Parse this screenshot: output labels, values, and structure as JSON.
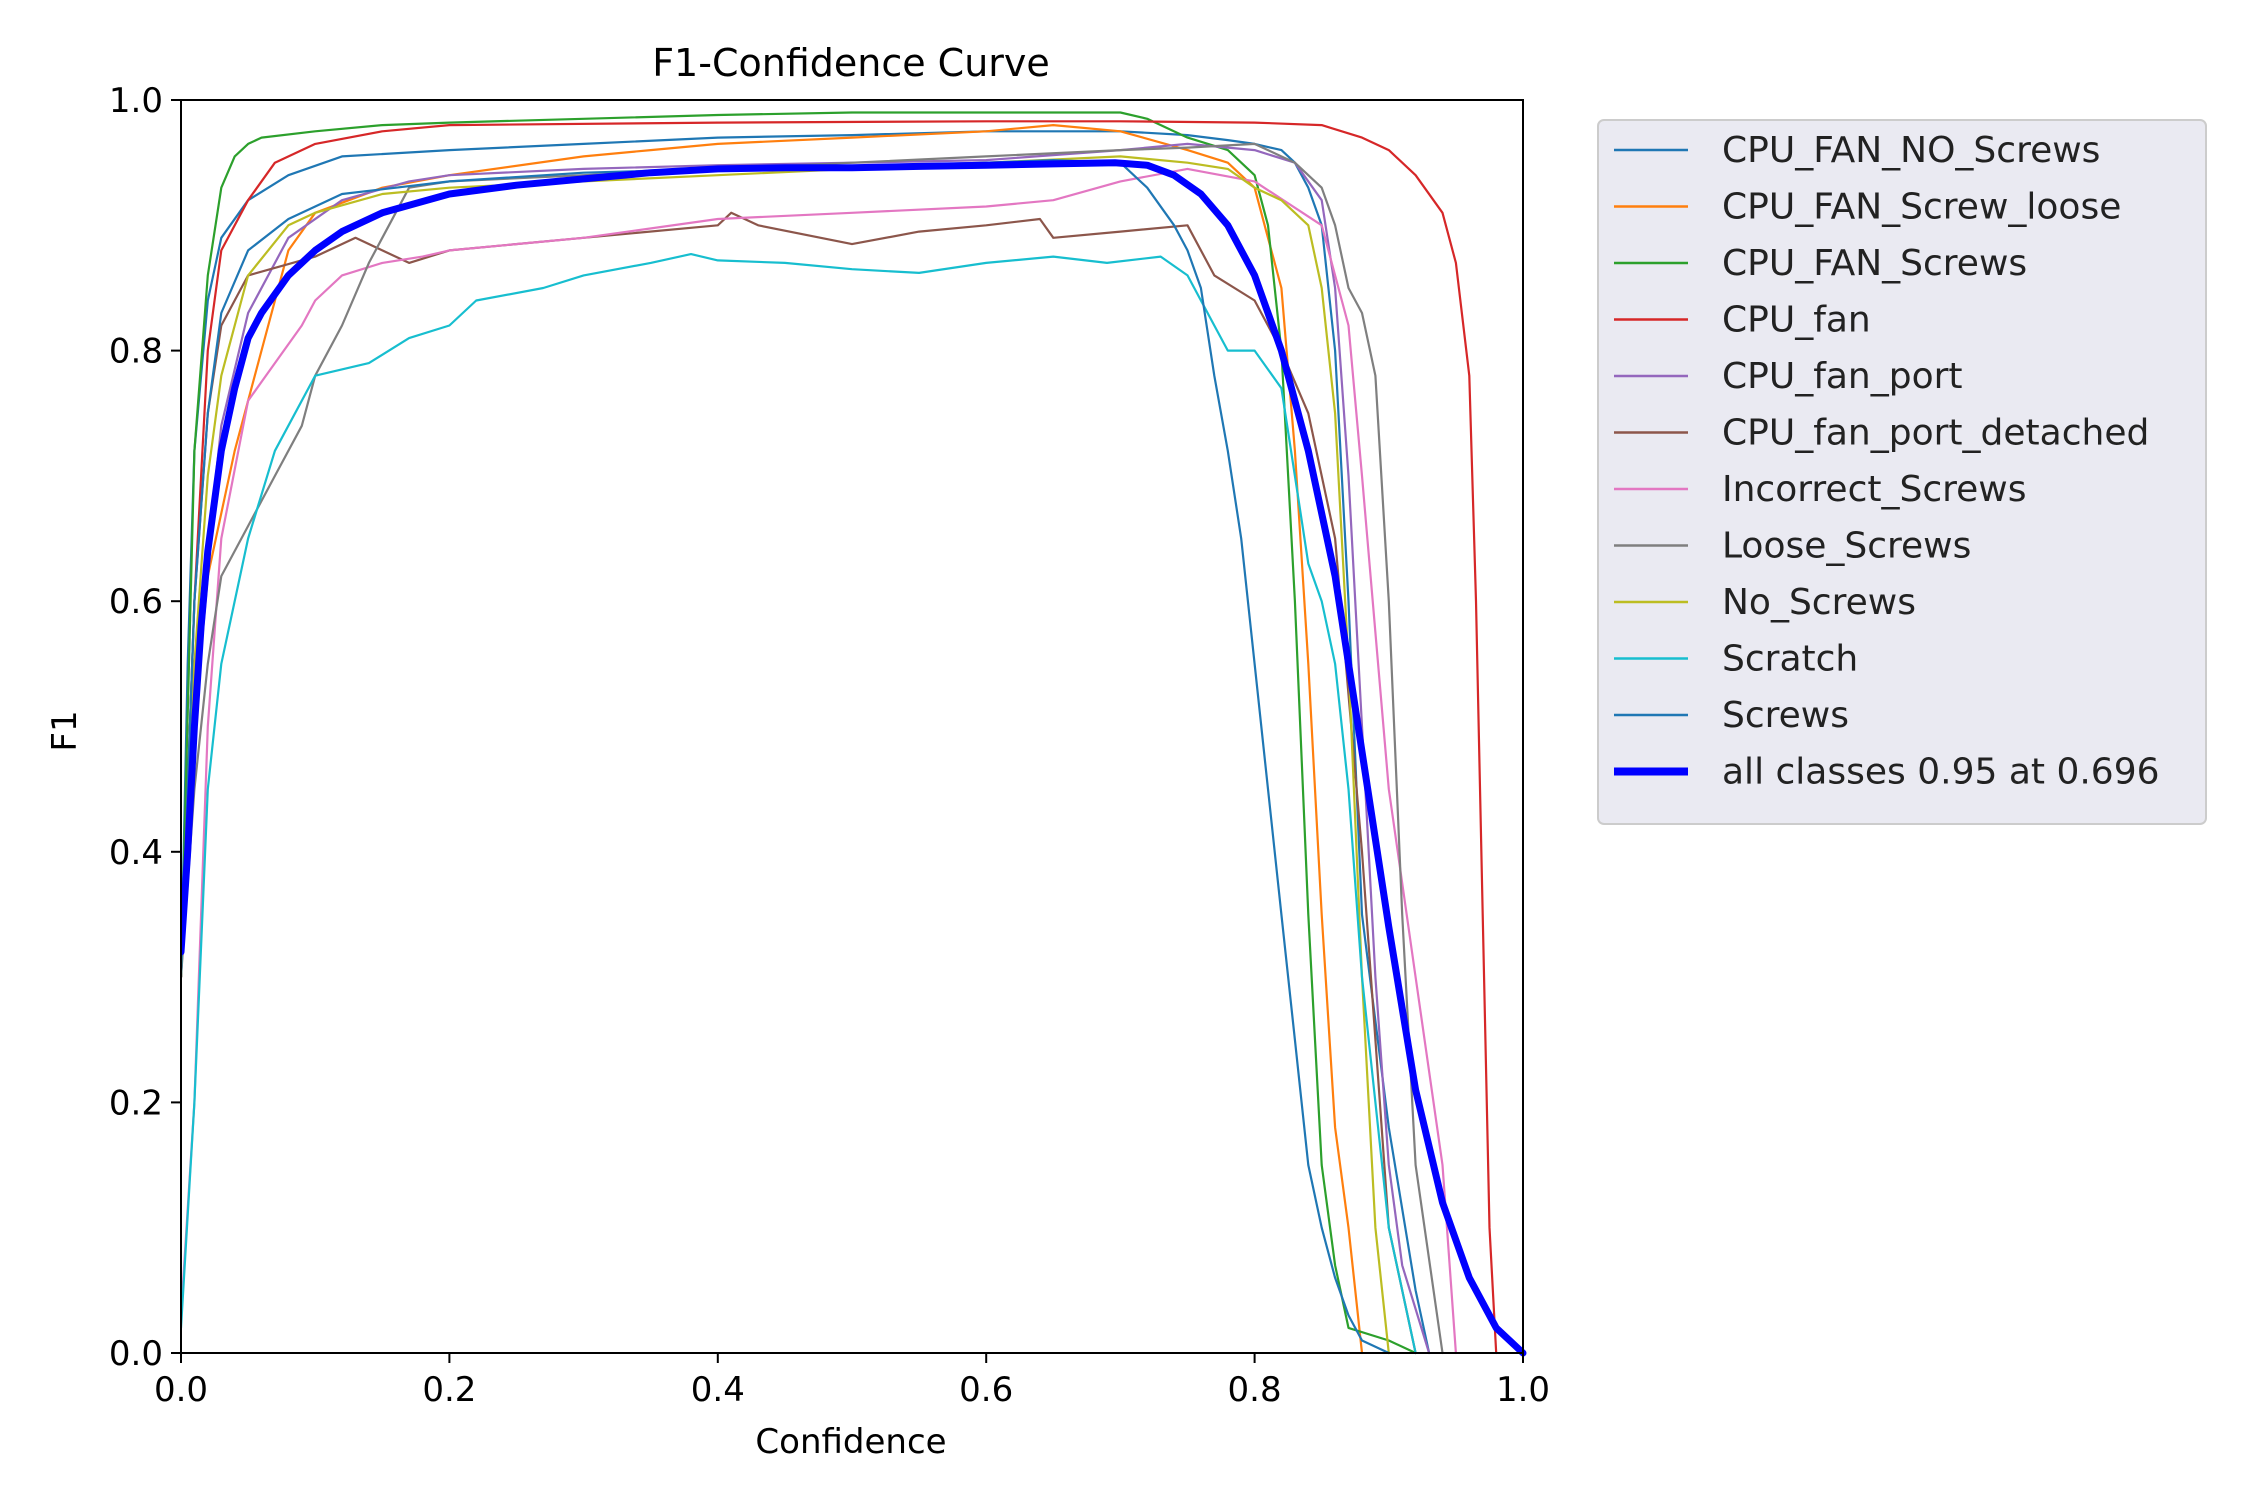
{
  "chart_data": {
    "type": "line",
    "title": "F1-Confidence Curve",
    "xlabel": "Confidence",
    "ylabel": "F1",
    "xlim": [
      0,
      1
    ],
    "ylim": [
      0,
      1
    ],
    "xticks": [
      "0.0",
      "0.2",
      "0.4",
      "0.6",
      "0.8",
      "1.0"
    ],
    "yticks": [
      "0.0",
      "0.2",
      "0.4",
      "0.6",
      "0.8",
      "1.0"
    ],
    "legend_position": "outside-right",
    "grid": false,
    "series": [
      {
        "name": "CPU_FAN_NO_Screws",
        "color": "#1f77b4",
        "width": 1,
        "x": [
          0.0,
          0.005,
          0.01,
          0.02,
          0.03,
          0.05,
          0.08,
          0.12,
          0.2,
          0.3,
          0.4,
          0.5,
          0.6,
          0.7,
          0.75,
          0.78,
          0.8,
          0.82,
          0.83,
          0.84,
          0.85,
          0.86,
          0.87,
          0.88,
          0.9,
          0.92,
          0.93
        ],
        "y": [
          0.3,
          0.55,
          0.72,
          0.84,
          0.89,
          0.92,
          0.94,
          0.955,
          0.96,
          0.965,
          0.97,
          0.972,
          0.975,
          0.975,
          0.972,
          0.968,
          0.965,
          0.96,
          0.95,
          0.93,
          0.9,
          0.8,
          0.6,
          0.35,
          0.18,
          0.05,
          0.0
        ]
      },
      {
        "name": "CPU_FAN_Screw_loose",
        "color": "#ff7f0e",
        "width": 1,
        "x": [
          0.0,
          0.01,
          0.02,
          0.04,
          0.06,
          0.08,
          0.1,
          0.15,
          0.2,
          0.3,
          0.35,
          0.4,
          0.5,
          0.6,
          0.65,
          0.7,
          0.75,
          0.78,
          0.8,
          0.82,
          0.83,
          0.84,
          0.85,
          0.86,
          0.87,
          0.88
        ],
        "y": [
          0.3,
          0.5,
          0.62,
          0.72,
          0.8,
          0.88,
          0.91,
          0.93,
          0.94,
          0.955,
          0.96,
          0.965,
          0.97,
          0.975,
          0.98,
          0.975,
          0.96,
          0.95,
          0.93,
          0.85,
          0.72,
          0.55,
          0.35,
          0.18,
          0.1,
          0.0
        ]
      },
      {
        "name": "CPU_FAN_Screws",
        "color": "#2ca02c",
        "width": 1,
        "x": [
          0.0,
          0.01,
          0.02,
          0.03,
          0.04,
          0.05,
          0.06,
          0.1,
          0.15,
          0.2,
          0.3,
          0.4,
          0.5,
          0.6,
          0.7,
          0.72,
          0.75,
          0.78,
          0.8,
          0.81,
          0.82,
          0.83,
          0.84,
          0.85,
          0.86,
          0.87,
          0.9,
          0.92
        ],
        "y": [
          0.3,
          0.72,
          0.86,
          0.93,
          0.955,
          0.965,
          0.97,
          0.975,
          0.98,
          0.982,
          0.985,
          0.988,
          0.99,
          0.99,
          0.99,
          0.985,
          0.97,
          0.96,
          0.94,
          0.9,
          0.8,
          0.6,
          0.35,
          0.15,
          0.07,
          0.02,
          0.01,
          0.0
        ]
      },
      {
        "name": "CPU_fan",
        "color": "#d62728",
        "width": 1,
        "x": [
          0.0,
          0.01,
          0.02,
          0.03,
          0.05,
          0.07,
          0.1,
          0.15,
          0.2,
          0.4,
          0.6,
          0.7,
          0.8,
          0.85,
          0.88,
          0.9,
          0.92,
          0.94,
          0.95,
          0.96,
          0.965,
          0.97,
          0.975,
          0.98
        ],
        "y": [
          0.3,
          0.6,
          0.8,
          0.88,
          0.92,
          0.95,
          0.965,
          0.975,
          0.98,
          0.982,
          0.983,
          0.983,
          0.982,
          0.98,
          0.97,
          0.96,
          0.94,
          0.91,
          0.87,
          0.78,
          0.6,
          0.35,
          0.1,
          0.0
        ]
      },
      {
        "name": "CPU_fan_port",
        "color": "#9467bd",
        "width": 1,
        "x": [
          0.0,
          0.01,
          0.02,
          0.03,
          0.05,
          0.08,
          0.12,
          0.17,
          0.2,
          0.3,
          0.4,
          0.5,
          0.6,
          0.7,
          0.75,
          0.8,
          0.83,
          0.85,
          0.86,
          0.87,
          0.88,
          0.89,
          0.9,
          0.91,
          0.93
        ],
        "y": [
          0.3,
          0.5,
          0.64,
          0.74,
          0.83,
          0.89,
          0.92,
          0.935,
          0.94,
          0.945,
          0.948,
          0.95,
          0.952,
          0.96,
          0.965,
          0.96,
          0.95,
          0.92,
          0.85,
          0.7,
          0.5,
          0.3,
          0.15,
          0.07,
          0.0
        ]
      },
      {
        "name": "CPU_fan_port_detached",
        "color": "#8c564b",
        "width": 1,
        "x": [
          0.0,
          0.01,
          0.02,
          0.03,
          0.05,
          0.1,
          0.13,
          0.15,
          0.17,
          0.2,
          0.3,
          0.4,
          0.41,
          0.43,
          0.5,
          0.55,
          0.6,
          0.64,
          0.65,
          0.7,
          0.75,
          0.77,
          0.8,
          0.82,
          0.84,
          0.86,
          0.88,
          0.9,
          0.92
        ],
        "y": [
          0.3,
          0.6,
          0.75,
          0.82,
          0.86,
          0.875,
          0.89,
          0.88,
          0.87,
          0.88,
          0.89,
          0.9,
          0.91,
          0.9,
          0.885,
          0.895,
          0.9,
          0.905,
          0.89,
          0.895,
          0.9,
          0.86,
          0.84,
          0.8,
          0.75,
          0.65,
          0.4,
          0.1,
          0.0
        ]
      },
      {
        "name": "Incorrect_Screws",
        "color": "#e377c2",
        "width": 1,
        "x": [
          0.0,
          0.01,
          0.02,
          0.03,
          0.05,
          0.07,
          0.09,
          0.1,
          0.12,
          0.15,
          0.18,
          0.2,
          0.3,
          0.4,
          0.5,
          0.6,
          0.65,
          0.7,
          0.75,
          0.8,
          0.85,
          0.87,
          0.88,
          0.9,
          0.92,
          0.94,
          0.95
        ],
        "y": [
          0.03,
          0.2,
          0.5,
          0.65,
          0.76,
          0.79,
          0.82,
          0.84,
          0.86,
          0.87,
          0.875,
          0.88,
          0.89,
          0.905,
          0.91,
          0.915,
          0.92,
          0.935,
          0.945,
          0.935,
          0.9,
          0.82,
          0.7,
          0.45,
          0.3,
          0.15,
          0.0
        ]
      },
      {
        "name": "Loose_Screws",
        "color": "#7f7f7f",
        "width": 1,
        "x": [
          0.0,
          0.01,
          0.02,
          0.03,
          0.05,
          0.07,
          0.09,
          0.1,
          0.12,
          0.14,
          0.17,
          0.2,
          0.3,
          0.4,
          0.5,
          0.6,
          0.7,
          0.75,
          0.8,
          0.83,
          0.85,
          0.86,
          0.87,
          0.88,
          0.89,
          0.9,
          0.91,
          0.92,
          0.94
        ],
        "y": [
          0.3,
          0.45,
          0.55,
          0.62,
          0.66,
          0.7,
          0.74,
          0.78,
          0.82,
          0.87,
          0.93,
          0.935,
          0.94,
          0.945,
          0.95,
          0.955,
          0.96,
          0.962,
          0.965,
          0.95,
          0.93,
          0.9,
          0.85,
          0.83,
          0.78,
          0.6,
          0.35,
          0.15,
          0.0
        ]
      },
      {
        "name": "No_Screws",
        "color": "#bcbd22",
        "width": 1,
        "x": [
          0.0,
          0.01,
          0.02,
          0.03,
          0.05,
          0.08,
          0.1,
          0.15,
          0.2,
          0.3,
          0.4,
          0.5,
          0.6,
          0.7,
          0.75,
          0.78,
          0.8,
          0.82,
          0.84,
          0.85,
          0.86,
          0.87,
          0.88,
          0.89,
          0.9
        ],
        "y": [
          0.3,
          0.55,
          0.7,
          0.78,
          0.86,
          0.9,
          0.91,
          0.925,
          0.93,
          0.935,
          0.94,
          0.945,
          0.95,
          0.955,
          0.95,
          0.945,
          0.93,
          0.92,
          0.9,
          0.85,
          0.75,
          0.55,
          0.3,
          0.1,
          0.0
        ]
      },
      {
        "name": "Scratch",
        "color": "#17becf",
        "width": 1,
        "x": [
          0.0,
          0.01,
          0.02,
          0.03,
          0.05,
          0.07,
          0.1,
          0.14,
          0.17,
          0.2,
          0.22,
          0.27,
          0.3,
          0.35,
          0.38,
          0.4,
          0.45,
          0.5,
          0.55,
          0.6,
          0.65,
          0.69,
          0.73,
          0.75,
          0.77,
          0.78,
          0.8,
          0.82,
          0.83,
          0.84,
          0.85,
          0.86,
          0.87,
          0.88,
          0.9,
          0.92
        ],
        "y": [
          0.02,
          0.2,
          0.45,
          0.55,
          0.65,
          0.72,
          0.78,
          0.79,
          0.81,
          0.82,
          0.84,
          0.85,
          0.86,
          0.87,
          0.877,
          0.872,
          0.87,
          0.865,
          0.862,
          0.87,
          0.875,
          0.87,
          0.875,
          0.86,
          0.82,
          0.8,
          0.8,
          0.77,
          0.7,
          0.63,
          0.6,
          0.55,
          0.45,
          0.3,
          0.1,
          0.0
        ]
      },
      {
        "name": "Screws",
        "color": "#1f77b4",
        "width": 1,
        "x": [
          0.0,
          0.01,
          0.02,
          0.03,
          0.05,
          0.08,
          0.12,
          0.2,
          0.3,
          0.4,
          0.5,
          0.6,
          0.65,
          0.7,
          0.72,
          0.74,
          0.75,
          0.76,
          0.77,
          0.78,
          0.79,
          0.8,
          0.81,
          0.82,
          0.83,
          0.84,
          0.85,
          0.86,
          0.87,
          0.88,
          0.9
        ],
        "y": [
          0.3,
          0.6,
          0.75,
          0.83,
          0.88,
          0.905,
          0.925,
          0.935,
          0.942,
          0.945,
          0.947,
          0.95,
          0.952,
          0.95,
          0.93,
          0.9,
          0.88,
          0.85,
          0.78,
          0.72,
          0.65,
          0.55,
          0.45,
          0.35,
          0.25,
          0.15,
          0.1,
          0.06,
          0.03,
          0.01,
          0.0
        ]
      },
      {
        "name": "all classes 0.95 at 0.696",
        "color": "#0000ff",
        "width": 7,
        "x": [
          0.0,
          0.005,
          0.01,
          0.015,
          0.02,
          0.03,
          0.04,
          0.05,
          0.06,
          0.08,
          0.1,
          0.12,
          0.15,
          0.2,
          0.25,
          0.3,
          0.35,
          0.4,
          0.45,
          0.5,
          0.55,
          0.6,
          0.65,
          0.696,
          0.72,
          0.74,
          0.76,
          0.78,
          0.8,
          0.82,
          0.84,
          0.86,
          0.88,
          0.9,
          0.92,
          0.94,
          0.96,
          0.98,
          1.0
        ],
        "y": [
          0.32,
          0.4,
          0.5,
          0.58,
          0.64,
          0.72,
          0.77,
          0.81,
          0.83,
          0.86,
          0.88,
          0.895,
          0.91,
          0.925,
          0.932,
          0.937,
          0.942,
          0.945,
          0.946,
          0.946,
          0.947,
          0.948,
          0.949,
          0.95,
          0.948,
          0.94,
          0.925,
          0.9,
          0.86,
          0.8,
          0.72,
          0.62,
          0.48,
          0.34,
          0.21,
          0.12,
          0.06,
          0.02,
          0.0
        ]
      }
    ]
  }
}
